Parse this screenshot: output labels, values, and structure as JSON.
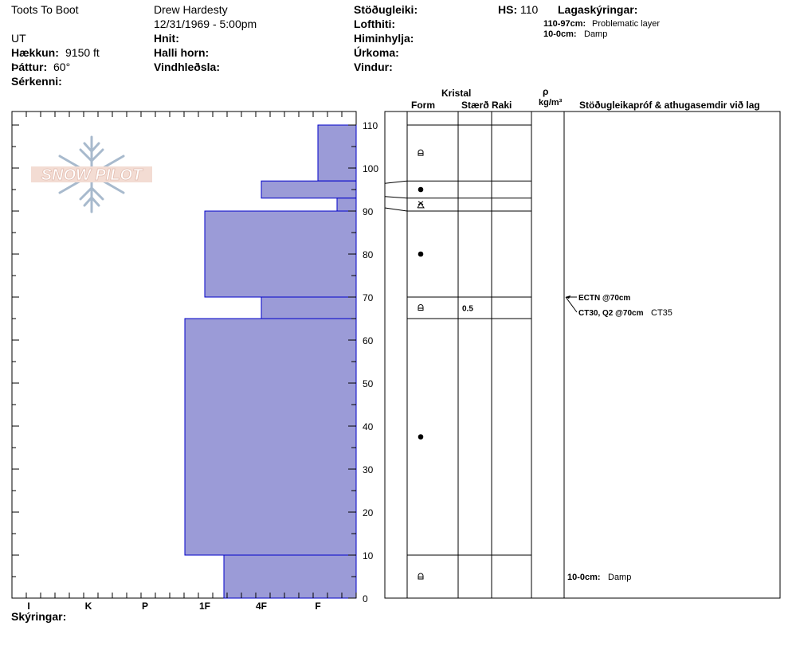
{
  "header": {
    "location_name": "Toots To Boot",
    "observer": "Drew Hardesty",
    "datetime": "12/31/1969 - 5:00pm",
    "region": "UT",
    "elevation_label": "Hækkun:",
    "elevation_value": "9150 ft",
    "aspect_label": "Þáttur:",
    "aspect_value": "60°",
    "features_label": "Sérkenni:",
    "coords_label": "Hnit:",
    "slope_label": "Halli horn:",
    "wind_loading_label": "Vindhleðsla:",
    "stability_label": "Stöðugleiki:",
    "air_temp_label": "Lofthiti:",
    "sky_label": "Himinhylja:",
    "precip_label": "Úrkoma:",
    "wind_label": "Vindur:",
    "hs_label": "HS:",
    "hs_value": "110",
    "layer_notes_label": "Lagaskýringar:",
    "layer_notes": [
      {
        "range": "110-97cm:",
        "text": "Problematic layer"
      },
      {
        "range": "10-0cm:",
        "text": "Damp"
      }
    ]
  },
  "logo_text": "SNOW PILOT",
  "columns": {
    "kristal": "Kristal",
    "form": "Form",
    "size": "Stærð",
    "moisture": "Raki",
    "density_symbol": "ρ",
    "density_unit": "kg/m³",
    "tests": "Stöðugleikapróf & athugasemdir við lag"
  },
  "footer": {
    "notes_label": "Skýringar:"
  },
  "chart_data": {
    "type": "bar",
    "title": "",
    "ylabel": "",
    "xlabel": "",
    "y_unit": "cm",
    "ylim": [
      0,
      110
    ],
    "y_ticks": [
      0,
      10,
      20,
      30,
      40,
      50,
      60,
      70,
      80,
      90,
      100,
      110
    ],
    "hardness_scale": [
      "I",
      "K",
      "P",
      "1F",
      "4F",
      "F"
    ],
    "layers": [
      {
        "top": 110,
        "bottom": 97,
        "hardness": "F"
      },
      {
        "top": 97,
        "bottom": 93,
        "hardness": "4F"
      },
      {
        "top": 93,
        "bottom": 90,
        "hardness": "F+"
      },
      {
        "top": 90,
        "bottom": 70,
        "hardness": "1F"
      },
      {
        "top": 70,
        "bottom": 65,
        "hardness": "4F"
      },
      {
        "top": 65,
        "bottom": 10,
        "hardness": "1F-"
      },
      {
        "top": 10,
        "bottom": 0,
        "hardness": "1F+"
      }
    ],
    "crystal_rows": [
      {
        "top": 110,
        "bottom": 97,
        "form": "faceted-rounded",
        "size": ""
      },
      {
        "top": 97,
        "bottom": 93,
        "form": "rounded",
        "size": ""
      },
      {
        "top": 93,
        "bottom": 90,
        "form": "surface-hoar",
        "size": ""
      },
      {
        "top": 90,
        "bottom": 70,
        "form": "rounded",
        "size": ""
      },
      {
        "top": 70,
        "bottom": 65,
        "form": "faceted-rounded",
        "size": "0.5"
      },
      {
        "top": 65,
        "bottom": 10,
        "form": "rounded",
        "size": ""
      },
      {
        "top": 10,
        "bottom": 0,
        "form": "faceted-rounded",
        "size": ""
      }
    ],
    "tests": [
      {
        "depth": 70,
        "text": "ECTN @70cm",
        "extra": ""
      },
      {
        "depth": 70,
        "text": "CT30, Q2 @70cm",
        "extra": "CT35"
      }
    ],
    "layer_comments": [
      {
        "depth": 5,
        "range": "10-0cm:",
        "text": "Damp"
      }
    ],
    "colors": {
      "bar_fill": "#9b9bd7",
      "bar_stroke": "#0000c8"
    }
  }
}
